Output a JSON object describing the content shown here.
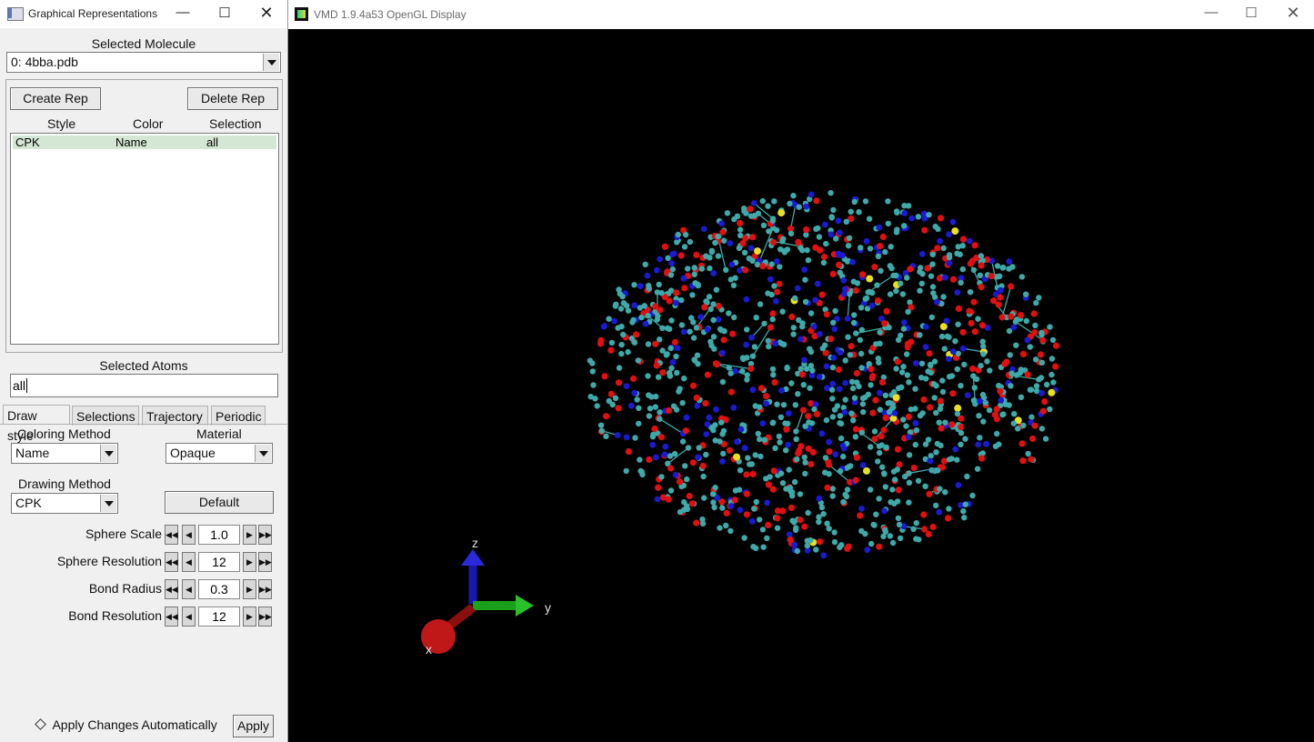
{
  "rep_window": {
    "title": "Graphical Representations",
    "selected_molecule_label": "Selected Molecule",
    "selected_molecule": "0: 4bba.pdb",
    "create_rep": "Create Rep",
    "delete_rep": "Delete Rep",
    "table_headers": [
      "Style",
      "Color",
      "Selection"
    ],
    "rows": [
      {
        "style": "CPK",
        "color": "Name",
        "selection": "all"
      }
    ],
    "selected_atoms_label": "Selected Atoms",
    "selected_atoms_value": "all",
    "tabs": [
      "Draw style",
      "Selections",
      "Trajectory",
      "Periodic"
    ],
    "active_tab": "Draw style",
    "coloring_method_label": "Coloring Method",
    "coloring_method": "Name",
    "material_label": "Material",
    "material": "Opaque",
    "drawing_method_label": "Drawing Method",
    "drawing_method": "CPK",
    "default_button": "Default",
    "params": [
      {
        "label": "Sphere Scale",
        "value": "1.0"
      },
      {
        "label": "Sphere Resolution",
        "value": "12"
      },
      {
        "label": "Bond Radius",
        "value": "0.3"
      },
      {
        "label": "Bond Resolution",
        "value": "12"
      }
    ],
    "apply_auto_label": "Apply Changes Automatically",
    "apply_button": "Apply"
  },
  "gl_window": {
    "title": "VMD 1.9.4a53 OpenGL Display",
    "background_color": "#000000",
    "axes": {
      "x": "x",
      "y": "y",
      "z": "z"
    },
    "atom_colors": {
      "carbon": "#3fa9a9",
      "oxygen": "#e01010",
      "nitrogen": "#1a1ad0",
      "sulfur": "#e8e020"
    }
  }
}
